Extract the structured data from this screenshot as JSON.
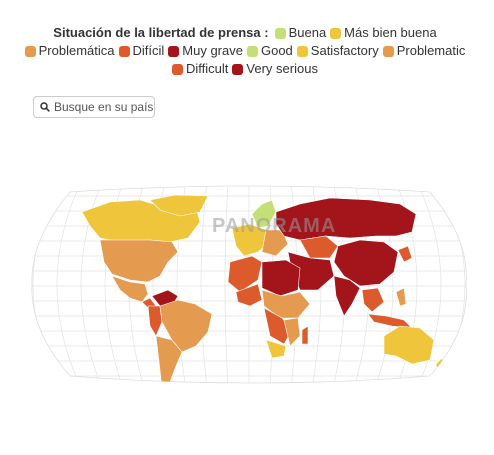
{
  "legend": {
    "title": "Situación de la libertad de prensa :",
    "items": [
      {
        "label": "Buena",
        "color": "#c5df78"
      },
      {
        "label": "Más bien buena",
        "color": "#efc63b"
      },
      {
        "label": "Problemática",
        "color": "#e49a4f"
      },
      {
        "label": "Difícil",
        "color": "#dd5a2c"
      },
      {
        "label": "Muy grave",
        "color": "#a3141b"
      },
      {
        "label": "Good",
        "color": "#c5df78"
      },
      {
        "label": "Satisfactory",
        "color": "#efc63b"
      },
      {
        "label": "Problematic",
        "color": "#e49a4f"
      },
      {
        "label": "Difficult",
        "color": "#dd5a2c"
      },
      {
        "label": "Very serious",
        "color": "#a3141b"
      }
    ]
  },
  "search": {
    "placeholder": "Busque en su país"
  },
  "watermark": "PANORAMA"
}
